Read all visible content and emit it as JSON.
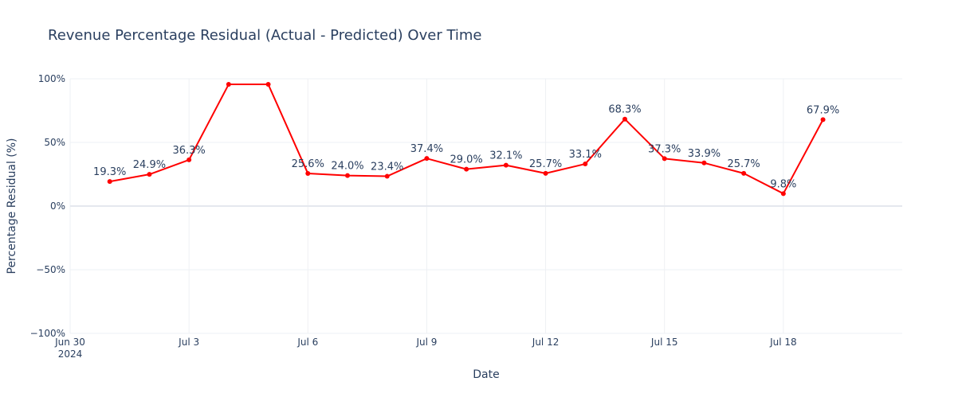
{
  "chart_data": {
    "type": "line",
    "title": "Revenue Percentage Residual (Actual - Predicted) Over Time",
    "xlabel": "Date",
    "ylabel": "Percentage Residual (%)",
    "x_range": [
      "2024-06-30",
      "2024-07-21"
    ],
    "ylim": [
      -100,
      100
    ],
    "y_ticks": [
      {
        "value": 100,
        "label": "100%"
      },
      {
        "value": 50,
        "label": "50%"
      },
      {
        "value": 0,
        "label": "0%"
      },
      {
        "value": -50,
        "label": "−50%"
      },
      {
        "value": -100,
        "label": "−100%"
      }
    ],
    "x_ticks": [
      {
        "date": "2024-06-30",
        "label": "Jun 30",
        "sublabel": "2024"
      },
      {
        "date": "2024-07-03",
        "label": "Jul 3"
      },
      {
        "date": "2024-07-06",
        "label": "Jul 6"
      },
      {
        "date": "2024-07-09",
        "label": "Jul 9"
      },
      {
        "date": "2024-07-12",
        "label": "Jul 12"
      },
      {
        "date": "2024-07-15",
        "label": "Jul 15"
      },
      {
        "date": "2024-07-18",
        "label": "Jul 18"
      }
    ],
    "grid": true,
    "line_color": "#ff0000",
    "points": [
      {
        "date": "2024-07-01",
        "y": 19.3,
        "label": "19.3%"
      },
      {
        "date": "2024-07-02",
        "y": 24.9,
        "label": "24.9%"
      },
      {
        "date": "2024-07-03",
        "y": 36.3,
        "label": "36.3%"
      },
      {
        "date": "2024-07-04",
        "y": 95.6,
        "label": ""
      },
      {
        "date": "2024-07-05",
        "y": 95.6,
        "label": ""
      },
      {
        "date": "2024-07-06",
        "y": 25.6,
        "label": "25.6%"
      },
      {
        "date": "2024-07-07",
        "y": 24.0,
        "label": "24.0%"
      },
      {
        "date": "2024-07-08",
        "y": 23.4,
        "label": "23.4%"
      },
      {
        "date": "2024-07-09",
        "y": 37.4,
        "label": "37.4%"
      },
      {
        "date": "2024-07-10",
        "y": 29.0,
        "label": "29.0%"
      },
      {
        "date": "2024-07-11",
        "y": 32.1,
        "label": "32.1%"
      },
      {
        "date": "2024-07-12",
        "y": 25.7,
        "label": "25.7%"
      },
      {
        "date": "2024-07-13",
        "y": 33.1,
        "label": "33.1%"
      },
      {
        "date": "2024-07-14",
        "y": 68.3,
        "label": "68.3%"
      },
      {
        "date": "2024-07-15",
        "y": 37.3,
        "label": "37.3%"
      },
      {
        "date": "2024-07-16",
        "y": 33.9,
        "label": "33.9%"
      },
      {
        "date": "2024-07-17",
        "y": 25.7,
        "label": "25.7%"
      },
      {
        "date": "2024-07-18",
        "y": 9.8,
        "label": "9.8%"
      },
      {
        "date": "2024-07-19",
        "y": 67.9,
        "label": "67.9%"
      }
    ]
  }
}
